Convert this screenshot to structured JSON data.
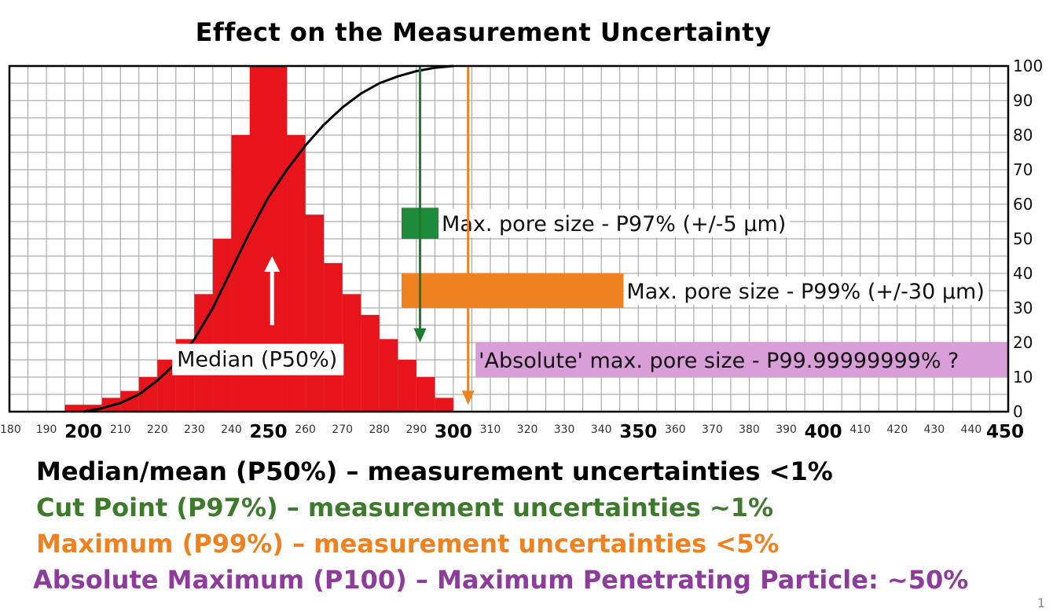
{
  "title": "Effect on the Measurement Uncertainty",
  "captions": [
    {
      "text": "Median/mean (P50%) – measurement uncertainties <1%",
      "color": "#000000"
    },
    {
      "text": "Cut Point (P97%) – measurement uncertainties ~1%",
      "color": "#3e7a2c"
    },
    {
      "text": "Maximum (P99%) – measurement uncertainties <5%",
      "color": "#ee8220"
    },
    {
      "text": "Absolute Maximum (P100) – Maximum Penetrating Particle: ~50%",
      "color": "#8e3c9c"
    }
  ],
  "page_number": "1",
  "chart_data": {
    "type": "bar",
    "xlim": [
      180,
      450
    ],
    "ylim": [
      0,
      100
    ],
    "x_ticks": [
      180,
      190,
      200,
      210,
      220,
      230,
      240,
      250,
      260,
      270,
      280,
      290,
      300,
      310,
      320,
      330,
      340,
      350,
      360,
      370,
      380,
      390,
      400,
      410,
      420,
      430,
      440,
      450
    ],
    "x_ticks_major": [
      200,
      250,
      300,
      350,
      400,
      450
    ],
    "y_ticks": [
      0,
      10,
      20,
      30,
      40,
      50,
      60,
      70,
      80,
      90,
      100
    ],
    "grid": true,
    "bar_width": 5,
    "bars_x": [
      197.5,
      202.5,
      207.5,
      212.5,
      217.5,
      222.5,
      227.5,
      232.5,
      237.5,
      242.5,
      247.5,
      252.5,
      257.5,
      262.5,
      267.5,
      272.5,
      277.5,
      282.5,
      287.5,
      292.5,
      297.5
    ],
    "bars_y": [
      2,
      2,
      4,
      6,
      10,
      15,
      21,
      34,
      50,
      80,
      100,
      100,
      80,
      57,
      43,
      34,
      28,
      21,
      15,
      10,
      4
    ],
    "bar_color": "#e8141b",
    "cumulative_curve": {
      "x": [
        200,
        205,
        210,
        215,
        220,
        225,
        230,
        235,
        240,
        245,
        250,
        255,
        260,
        265,
        270,
        275,
        280,
        285,
        290,
        295,
        300
      ],
      "y": [
        0,
        1,
        2.5,
        5,
        9,
        14,
        21,
        30,
        41,
        52,
        62,
        70,
        77,
        83,
        88,
        92,
        95,
        97,
        98.5,
        99.5,
        100
      ],
      "color": "#000000"
    },
    "markers": [
      {
        "name": "P50",
        "x": 251,
        "y_from": 25,
        "y_to": 45,
        "color": "#ffffff",
        "direction": "up"
      },
      {
        "name": "P97",
        "x": 291,
        "y_from": 100,
        "y_to": 20,
        "color": "#1e7a2e",
        "direction": "down"
      },
      {
        "name": "P99",
        "x": 304,
        "y_from": 100,
        "y_to": 2,
        "color": "#ee8220",
        "direction": "down"
      }
    ],
    "range_bars": [
      {
        "label": "Max. pore size - P97% (+/-5 µm)",
        "x_from": 286,
        "x_to": 296,
        "y_from": 50,
        "y_to": 59,
        "color": "#1e8a3a"
      },
      {
        "label": "Max. pore size - P99% (+/-30 µm)",
        "x_from": 286,
        "x_to": 346,
        "y_from": 30,
        "y_to": 40,
        "color": "#ee8220"
      },
      {
        "label": "'Absolute' max. pore size - P99.99999999% ?",
        "x_from": 306,
        "x_to": 450,
        "y_from": 10,
        "y_to": 20,
        "color": "#d99ed8"
      }
    ],
    "annotations": [
      {
        "text": "Median (P50%)",
        "x": 224,
        "y": 11,
        "box": "white"
      }
    ]
  }
}
